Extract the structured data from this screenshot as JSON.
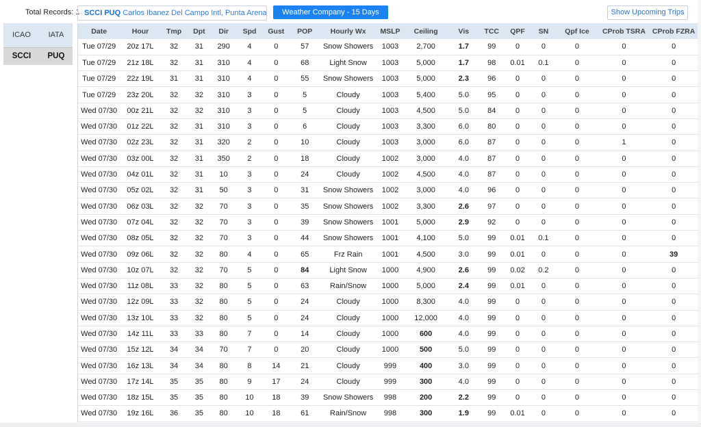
{
  "header": {
    "total_records_label": "Total Records: 1",
    "station_code": "SCCI PUQ",
    "station_name": "Carlos Ibanez Del Campo Intl, Punta Arenas, CL",
    "weather_button": "Weather Company - 15 Days",
    "trips_button": "Show Upcoming Trips"
  },
  "side": {
    "columns": [
      "ICAO",
      "IATA"
    ],
    "row": [
      "SCCI",
      "PUQ"
    ]
  },
  "table": {
    "columns": [
      "Date",
      "Hour",
      "Tmp",
      "Dpt",
      "Dir",
      "Spd",
      "Gust",
      "POP",
      "Hourly Wx",
      "MSLP",
      "Ceiling",
      "Vis",
      "TCC",
      "QPF",
      "SN",
      "Qpf Ice",
      "CProb TSRA",
      "CProb FZRA"
    ],
    "rows": [
      [
        "Tue 07/29",
        "20z 17L",
        "32",
        "31",
        "290",
        "4",
        "0",
        "57",
        "Snow Showers",
        "1003",
        "2,700",
        "1.7",
        "99",
        "0",
        "0",
        "0",
        "0",
        "0"
      ],
      [
        "Tue 07/29",
        "21z 18L",
        "32",
        "31",
        "310",
        "4",
        "0",
        "68",
        "Light Snow",
        "1003",
        "5,000",
        "1.7",
        "98",
        "0.01",
        "0.1",
        "0",
        "0",
        "0"
      ],
      [
        "Tue 07/29",
        "22z 19L",
        "31",
        "31",
        "310",
        "4",
        "0",
        "55",
        "Snow Showers",
        "1003",
        "5,000",
        "2.3",
        "96",
        "0",
        "0",
        "0",
        "0",
        "0"
      ],
      [
        "Tue 07/29",
        "23z 20L",
        "32",
        "32",
        "310",
        "3",
        "0",
        "5",
        "Cloudy",
        "1003",
        "5,400",
        "5.0",
        "95",
        "0",
        "0",
        "0",
        "0",
        "0"
      ],
      [
        "Wed 07/30",
        "00z 21L",
        "32",
        "32",
        "310",
        "3",
        "0",
        "5",
        "Cloudy",
        "1003",
        "4,500",
        "5.0",
        "84",
        "0",
        "0",
        "0",
        "0",
        "0"
      ],
      [
        "Wed 07/30",
        "01z 22L",
        "32",
        "31",
        "310",
        "3",
        "0",
        "6",
        "Cloudy",
        "1003",
        "3,300",
        "6.0",
        "80",
        "0",
        "0",
        "0",
        "0",
        "0"
      ],
      [
        "Wed 07/30",
        "02z 23L",
        "32",
        "31",
        "320",
        "2",
        "0",
        "10",
        "Cloudy",
        "1003",
        "3,000",
        "6.0",
        "87",
        "0",
        "0",
        "0",
        "1",
        "0"
      ],
      [
        "Wed 07/30",
        "03z 00L",
        "32",
        "31",
        "350",
        "2",
        "0",
        "18",
        "Cloudy",
        "1002",
        "3,000",
        "4.0",
        "87",
        "0",
        "0",
        "0",
        "0",
        "0"
      ],
      [
        "Wed 07/30",
        "04z 01L",
        "32",
        "31",
        "10",
        "3",
        "0",
        "24",
        "Cloudy",
        "1002",
        "4,500",
        "4.0",
        "87",
        "0",
        "0",
        "0",
        "0",
        "0"
      ],
      [
        "Wed 07/30",
        "05z 02L",
        "32",
        "31",
        "50",
        "3",
        "0",
        "31",
        "Snow Showers",
        "1002",
        "3,000",
        "4.0",
        "96",
        "0",
        "0",
        "0",
        "0",
        "0"
      ],
      [
        "Wed 07/30",
        "06z 03L",
        "32",
        "32",
        "70",
        "3",
        "0",
        "35",
        "Snow Showers",
        "1002",
        "3,300",
        "2.6",
        "97",
        "0",
        "0",
        "0",
        "0",
        "0"
      ],
      [
        "Wed 07/30",
        "07z 04L",
        "32",
        "32",
        "70",
        "3",
        "0",
        "39",
        "Snow Showers",
        "1001",
        "5,000",
        "2.9",
        "92",
        "0",
        "0",
        "0",
        "0",
        "0"
      ],
      [
        "Wed 07/30",
        "08z 05L",
        "32",
        "32",
        "70",
        "3",
        "0",
        "44",
        "Snow Showers",
        "1001",
        "4,100",
        "5.0",
        "99",
        "0.01",
        "0.1",
        "0",
        "0",
        "0"
      ],
      [
        "Wed 07/30",
        "09z 06L",
        "32",
        "32",
        "80",
        "4",
        "0",
        "65",
        "Frz Rain",
        "1001",
        "4,500",
        "3.0",
        "99",
        "0.01",
        "0",
        "0",
        "0",
        "39"
      ],
      [
        "Wed 07/30",
        "10z 07L",
        "32",
        "32",
        "70",
        "5",
        "0",
        "84",
        "Light Snow",
        "1000",
        "4,900",
        "2.6",
        "99",
        "0.02",
        "0.2",
        "0",
        "0",
        "0"
      ],
      [
        "Wed 07/30",
        "11z 08L",
        "33",
        "32",
        "80",
        "5",
        "0",
        "63",
        "Rain/Snow",
        "1000",
        "5,000",
        "2.4",
        "99",
        "0.01",
        "0",
        "0",
        "0",
        "0"
      ],
      [
        "Wed 07/30",
        "12z 09L",
        "33",
        "32",
        "80",
        "5",
        "0",
        "24",
        "Cloudy",
        "1000",
        "8,300",
        "4.0",
        "99",
        "0",
        "0",
        "0",
        "0",
        "0"
      ],
      [
        "Wed 07/30",
        "13z 10L",
        "33",
        "32",
        "80",
        "5",
        "0",
        "24",
        "Cloudy",
        "1000",
        "12,000",
        "4.0",
        "99",
        "0",
        "0",
        "0",
        "0",
        "0"
      ],
      [
        "Wed 07/30",
        "14z 11L",
        "33",
        "33",
        "80",
        "7",
        "0",
        "14",
        "Cloudy",
        "1000",
        "600",
        "4.0",
        "99",
        "0",
        "0",
        "0",
        "0",
        "0"
      ],
      [
        "Wed 07/30",
        "15z 12L",
        "34",
        "34",
        "70",
        "7",
        "0",
        "20",
        "Cloudy",
        "1000",
        "500",
        "5.0",
        "99",
        "0",
        "0",
        "0",
        "0",
        "0"
      ],
      [
        "Wed 07/30",
        "16z 13L",
        "34",
        "34",
        "80",
        "8",
        "14",
        "21",
        "Cloudy",
        "999",
        "400",
        "3.0",
        "99",
        "0",
        "0",
        "0",
        "0",
        "0"
      ],
      [
        "Wed 07/30",
        "17z 14L",
        "35",
        "35",
        "80",
        "9",
        "17",
        "24",
        "Cloudy",
        "999",
        "300",
        "4.0",
        "99",
        "0",
        "0",
        "0",
        "0",
        "0"
      ],
      [
        "Wed 07/30",
        "18z 15L",
        "35",
        "35",
        "80",
        "10",
        "18",
        "39",
        "Snow Showers",
        "998",
        "200",
        "2.2",
        "99",
        "0",
        "0",
        "0",
        "0",
        "0"
      ],
      [
        "Wed 07/30",
        "19z 16L",
        "36",
        "35",
        "80",
        "10",
        "18",
        "61",
        "Rain/Snow",
        "998",
        "300",
        "1.9",
        "99",
        "0.01",
        "0",
        "0",
        "0",
        "0"
      ]
    ],
    "cell_colors": {
      "tmp": [
        "default",
        "blue",
        "blue",
        "blue",
        "blue",
        "blue",
        "blue",
        "blue",
        "blue",
        "blue",
        "blue",
        "blue",
        "blue",
        "default",
        "default",
        "default",
        "default",
        "default",
        "default",
        "default",
        "default",
        "default",
        "default",
        "default"
      ],
      "pop": [
        "default",
        "default",
        "default",
        "default",
        "default",
        "default",
        "default",
        "default",
        "default",
        "default",
        "default",
        "default",
        "default",
        "default",
        "red",
        "default",
        "default",
        "default",
        "default",
        "default",
        "default",
        "default",
        "default",
        "default"
      ],
      "ceiling": [
        "blue",
        "teal",
        "teal",
        "teal",
        "teal",
        "teal",
        "teal",
        "teal",
        "teal",
        "teal",
        "teal",
        "teal",
        "teal",
        "teal",
        "teal",
        "teal",
        "teal",
        "teal",
        "red",
        "red",
        "magenta",
        "magenta",
        "magenta",
        "magenta"
      ],
      "vis": [
        "red",
        "red",
        "red",
        "blue",
        "blue",
        "teal",
        "teal",
        "blue",
        "blue",
        "blue",
        "red",
        "red",
        "blue",
        "blue",
        "red",
        "red",
        "blue",
        "blue",
        "blue",
        "blue",
        "blue",
        "blue",
        "red",
        "red"
      ],
      "fzra": [
        "default",
        "default",
        "default",
        "default",
        "default",
        "default",
        "default",
        "default",
        "default",
        "default",
        "default",
        "default",
        "default",
        "red",
        "default",
        "default",
        "default",
        "default",
        "default",
        "default",
        "default",
        "default",
        "default",
        "default"
      ]
    },
    "palette": {
      "blue": "#1a3fd0",
      "teal": "#21b88c",
      "red": "#e01b1b",
      "magenta": "#c23fd6",
      "header_bg": "#dbe8f4",
      "button_blue": "#1b82f2"
    }
  }
}
